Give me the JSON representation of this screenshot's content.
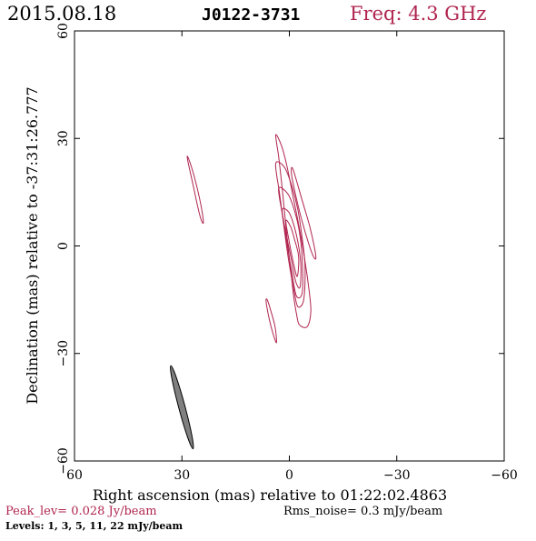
{
  "header": {
    "date": "2015.08.18",
    "source": "J0122-3731",
    "freq": "Freq: 4.3 GHz"
  },
  "footer": {
    "peak": "Peak_lev=  0.028 Jy/beam",
    "rms": "Rms_noise=  0.3 mJy/beam",
    "levels": "Levels:   1,   3,   5,  11,  22 mJy/beam"
  },
  "colors": {
    "contour": "#b0254f",
    "beam_fill": "#808080",
    "axis": "#000000",
    "header_date": "#000000",
    "header_freq": "#b0254f",
    "peak_text": "#b0254f"
  },
  "chart_data": {
    "type": "contour",
    "title": "J0122-3731",
    "xlabel": "Right ascension (mas) relative to 01:22:02.4863",
    "ylabel": "Declination (mas) relative to -37:31:26.777",
    "xlim": [
      60,
      -60
    ],
    "ylim": [
      -60,
      60
    ],
    "xticks": [
      60,
      30,
      0,
      -30,
      -60
    ],
    "yticks": [
      -60,
      -30,
      0,
      30,
      60
    ],
    "xtick_labels": [
      "60",
      "30",
      "0",
      "−30",
      "−60"
    ],
    "ytick_labels": [
      "−60",
      "−30",
      "0",
      "30",
      "60"
    ],
    "levels_mJy": [
      1,
      3,
      5,
      11,
      22
    ],
    "contours": [
      {
        "level": 1,
        "points": [
          [
            3.8,
            31.0
          ],
          [
            3.0,
            25.0
          ],
          [
            2.2,
            18.0
          ],
          [
            1.4,
            10.0
          ],
          [
            0.6,
            2.0
          ],
          [
            -0.4,
            -7.0
          ],
          [
            -1.2,
            -14.0
          ],
          [
            -2.0,
            -19.0
          ],
          [
            -2.8,
            -22.0
          ],
          [
            -5.0,
            -22.5
          ],
          [
            -6.0,
            -18.0
          ],
          [
            -5.2,
            -10.0
          ],
          [
            -4.0,
            -2.0
          ],
          [
            -2.6,
            6.0
          ],
          [
            -1.0,
            14.0
          ],
          [
            0.6,
            22.0
          ],
          [
            2.2,
            28.0
          ]
        ]
      },
      {
        "level": 3,
        "points": [
          [
            3.8,
            23.0
          ],
          [
            2.8,
            15.0
          ],
          [
            1.6,
            6.0
          ],
          [
            0.2,
            -4.0
          ],
          [
            -1.4,
            -13.0
          ],
          [
            -2.4,
            -17.0
          ],
          [
            -4.0,
            -15.0
          ],
          [
            -4.4,
            -6.0
          ],
          [
            -3.6,
            2.0
          ],
          [
            -2.4,
            10.0
          ],
          [
            -0.6,
            17.0
          ],
          [
            1.4,
            22.0
          ]
        ]
      },
      {
        "level": 5,
        "points": [
          [
            3.0,
            16.0
          ],
          [
            1.8,
            8.0
          ],
          [
            0.4,
            -1.0
          ],
          [
            -0.8,
            -8.0
          ],
          [
            -2.0,
            -14.0
          ],
          [
            -3.6,
            -13.0
          ],
          [
            -3.6,
            -4.0
          ],
          [
            -2.8,
            4.0
          ],
          [
            -1.4,
            10.0
          ],
          [
            0.4,
            14.5
          ]
        ]
      },
      {
        "level": 11,
        "points": [
          [
            2.0,
            10.0
          ],
          [
            0.8,
            3.0
          ],
          [
            -0.6,
            -4.0
          ],
          [
            -1.8,
            -10.0
          ],
          [
            -3.0,
            -11.5
          ],
          [
            -3.2,
            -5.0
          ],
          [
            -2.4,
            1.0
          ],
          [
            -1.2,
            6.0
          ],
          [
            0.2,
            9.5
          ]
        ]
      },
      {
        "level": 22,
        "points": [
          [
            1.0,
            7.0
          ],
          [
            0.0,
            1.0
          ],
          [
            -1.2,
            -5.0
          ],
          [
            -2.2,
            -8.5
          ],
          [
            -2.6,
            -3.0
          ],
          [
            -1.4,
            2.0
          ],
          [
            -0.3,
            5.5
          ]
        ]
      },
      {
        "level": 1,
        "points": [
          [
            -1.0,
            21.5
          ],
          [
            -3.5,
            13.0
          ],
          [
            -5.8,
            5.0
          ],
          [
            -7.4,
            -3.0
          ],
          [
            -6.4,
            -2.2
          ],
          [
            -3.8,
            6.0
          ],
          [
            -1.8,
            14.0
          ],
          [
            -0.6,
            20.0
          ]
        ]
      },
      {
        "level": 1,
        "points": [
          [
            28.5,
            24.5
          ],
          [
            27.0,
            17.5
          ],
          [
            25.0,
            8.5
          ],
          [
            24.0,
            6.5
          ],
          [
            24.8,
            12.0
          ],
          [
            26.6,
            19.5
          ],
          [
            28.0,
            24.0
          ]
        ]
      },
      {
        "level": 1,
        "points": [
          [
            6.5,
            -15.5
          ],
          [
            5.8,
            -19.5
          ],
          [
            4.7,
            -24.0
          ],
          [
            3.6,
            -27.0
          ],
          [
            4.0,
            -22.5
          ],
          [
            5.2,
            -18.0
          ],
          [
            6.2,
            -15.0
          ]
        ]
      }
    ],
    "beam": {
      "center": [
        30.0,
        -45.0
      ],
      "major_mas": 24.0,
      "minor_mas": 1.8,
      "pa_deg": -15
    }
  }
}
